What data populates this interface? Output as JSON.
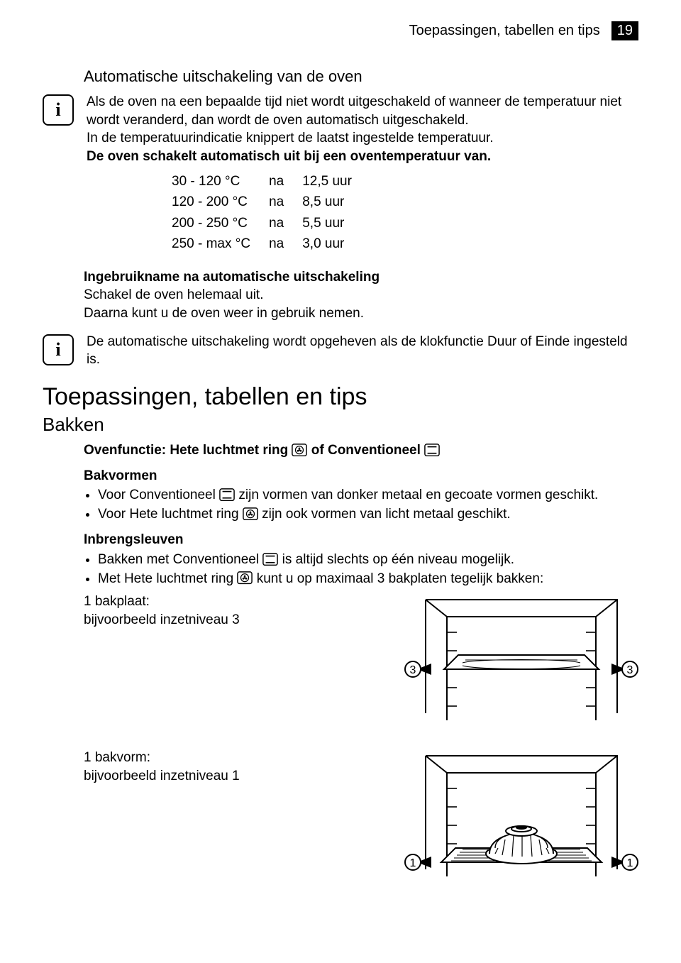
{
  "header": {
    "title": "Toepassingen, tabellen en tips",
    "page_number": "19"
  },
  "section1": {
    "heading": "Automatische uitschakeling van de oven",
    "info1_p1": "Als de oven na een bepaalde tijd niet wordt uitgeschakeld of wanneer de temperatuur niet wordt veranderd, dan wordt de oven automatisch uitgeschakeld.",
    "info1_p2": "In de temperatuurindicatie knippert de laatst ingestelde temperatuur.",
    "info1_p3": "De oven schakelt automatisch uit bij een oventemperatuur van.",
    "table": {
      "rows": [
        {
          "range": "30 - 120 °C",
          "word": "na",
          "time": "12,5 uur"
        },
        {
          "range": "120 - 200 °C",
          "word": "na",
          "time": "8,5 uur"
        },
        {
          "range": "200 - 250 °C",
          "word": "na",
          "time": "5,5 uur"
        },
        {
          "range": "250 - max °C",
          "word": "na",
          "time": "3,0 uur"
        }
      ]
    },
    "sub2_head": "Ingebruikname na automatische uitschakeling",
    "sub2_p1": "Schakel de oven helemaal uit.",
    "sub2_p2": "Daarna kunt u de oven weer in gebruik nemen.",
    "info2_p1": "De automatische uitschakeling wordt opgeheven als de klokfunctie Duur of Einde ingesteld is."
  },
  "section2": {
    "big_heading": "Toepassingen, tabellen en tips",
    "sub_heading": "Bakken",
    "ovenfunctie_pre": "Ovenfunctie: Hete luchtmet ring ",
    "ovenfunctie_mid": " of Conventioneel ",
    "bakvormen_head": "Bakvormen",
    "bakvormen_b1_pre": "Voor Conventioneel ",
    "bakvormen_b1_post": " zijn vormen van donker metaal en gecoate vormen geschikt.",
    "bakvormen_b2_pre": "Voor Hete luchtmet ring ",
    "bakvormen_b2_post": " zijn ook vormen van licht metaal geschikt.",
    "inbreng_head": "Inbrengsleuven",
    "inbreng_b1_pre": "Bakken met Conventioneel ",
    "inbreng_b1_post": " is altijd slechts op één niveau mogelijk.",
    "inbreng_b2_pre": "Met Hete luchtmet ring ",
    "inbreng_b2_post": " kunt u op maximaal 3 bakplaten tegelijk bakken:",
    "fig1_l1": "1 bakplaat:",
    "fig1_l2": "bijvoorbeeld inzetniveau 3",
    "fig2_l1": "1 bakvorm:",
    "fig2_l2": "bijvoorbeeld inzetniveau 1",
    "fig1_label": "3",
    "fig2_label": "1"
  }
}
